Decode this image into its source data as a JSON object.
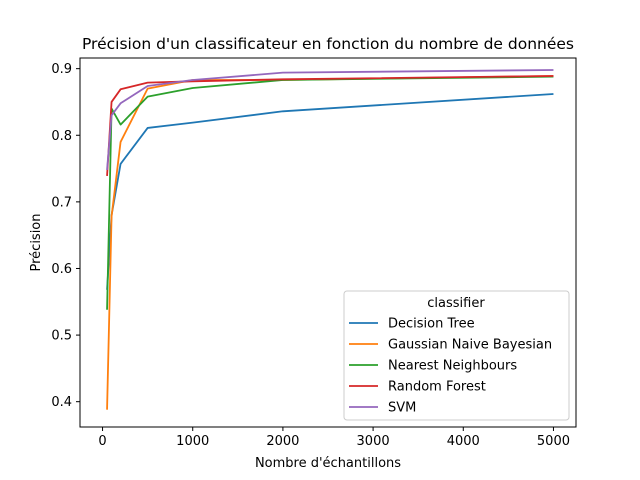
{
  "chart_data": {
    "type": "line",
    "title": "Précision d'un classificateur en fonction du nombre de données",
    "xlabel": "Nombre d'échantillons",
    "ylabel": "Précision",
    "xlim": [
      -250,
      5250
    ],
    "ylim": [
      0.362,
      0.916
    ],
    "xticks": [
      0,
      1000,
      2000,
      3000,
      4000,
      5000
    ],
    "xtick_labels": [
      "0",
      "1000",
      "2000",
      "3000",
      "4000",
      "5000"
    ],
    "yticks": [
      0.4,
      0.5,
      0.6,
      0.7,
      0.8,
      0.9
    ],
    "ytick_labels": [
      "0.4",
      "0.5",
      "0.6",
      "0.7",
      "0.8",
      "0.9"
    ],
    "grid": false,
    "legend": {
      "title": "classifier",
      "placement": "lower-right"
    },
    "series": [
      {
        "name": "Decision Tree",
        "color": "#1f77b4",
        "x": [
          50,
          100,
          200,
          500,
          1000,
          2000,
          5000
        ],
        "y": [
          0.568,
          0.68,
          0.757,
          0.811,
          0.819,
          0.836,
          0.862
        ]
      },
      {
        "name": "Gaussian Naive Bayesian",
        "color": "#ff7f0e",
        "x": [
          50,
          100,
          200,
          500,
          1000,
          2000,
          5000
        ],
        "y": [
          0.388,
          0.678,
          0.79,
          0.87,
          0.883,
          0.883,
          0.889
        ]
      },
      {
        "name": "Nearest Neighbours",
        "color": "#2ca02c",
        "x": [
          50,
          100,
          200,
          500,
          1000,
          2000,
          5000
        ],
        "y": [
          0.538,
          0.84,
          0.816,
          0.858,
          0.871,
          0.883,
          0.888
        ]
      },
      {
        "name": "Random Forest",
        "color": "#d62728",
        "x": [
          50,
          100,
          200,
          500,
          1000,
          2000,
          5000
        ],
        "y": [
          0.739,
          0.85,
          0.869,
          0.879,
          0.881,
          0.884,
          0.889
        ]
      },
      {
        "name": "SVM",
        "color": "#9467bd",
        "x": [
          50,
          100,
          200,
          500,
          1000,
          2000,
          5000
        ],
        "y": [
          0.748,
          0.83,
          0.848,
          0.874,
          0.883,
          0.894,
          0.898
        ]
      }
    ]
  }
}
